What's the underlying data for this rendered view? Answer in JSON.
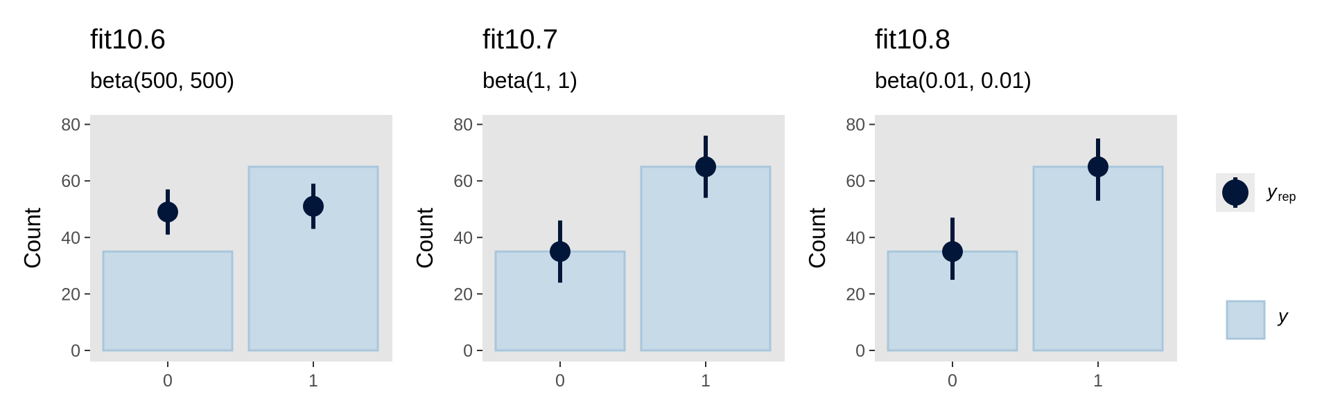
{
  "colors": {
    "panel_bg": "#e5e5e5",
    "bar_fill": "#c6dae8",
    "bar_stroke": "#a9c6dc",
    "point": "#011638",
    "tick": "#333333"
  },
  "legend": {
    "point_label": "y",
    "point_label_sub": "rep",
    "bar_label": "y"
  },
  "chart_data": [
    {
      "type": "bar",
      "title": "fit10.6",
      "subtitle": "beta(500, 500)",
      "ylabel": "Count",
      "ylim": [
        0,
        84
      ],
      "yticks": [
        0,
        20,
        40,
        60,
        80
      ],
      "categories": [
        "0",
        "1"
      ],
      "series": [
        {
          "name": "y",
          "kind": "bar",
          "values": [
            35,
            65
          ]
        },
        {
          "name": "y_rep",
          "kind": "pointrange",
          "values": [
            49,
            51
          ],
          "lower": [
            41,
            43
          ],
          "upper": [
            57,
            59
          ]
        }
      ]
    },
    {
      "type": "bar",
      "title": "fit10.7",
      "subtitle": "beta(1, 1)",
      "ylabel": "Count",
      "ylim": [
        0,
        84
      ],
      "yticks": [
        0,
        20,
        40,
        60,
        80
      ],
      "categories": [
        "0",
        "1"
      ],
      "series": [
        {
          "name": "y",
          "kind": "bar",
          "values": [
            35,
            65
          ]
        },
        {
          "name": "y_rep",
          "kind": "pointrange",
          "values": [
            35,
            65
          ],
          "lower": [
            24,
            54
          ],
          "upper": [
            46,
            76
          ]
        }
      ]
    },
    {
      "type": "bar",
      "title": "fit10.8",
      "subtitle": "beta(0.01, 0.01)",
      "ylabel": "Count",
      "ylim": [
        0,
        84
      ],
      "yticks": [
        0,
        20,
        40,
        60,
        80
      ],
      "categories": [
        "0",
        "1"
      ],
      "series": [
        {
          "name": "y",
          "kind": "bar",
          "values": [
            35,
            65
          ]
        },
        {
          "name": "y_rep",
          "kind": "pointrange",
          "values": [
            35,
            65
          ],
          "lower": [
            25,
            53
          ],
          "upper": [
            47,
            75
          ]
        }
      ]
    }
  ]
}
